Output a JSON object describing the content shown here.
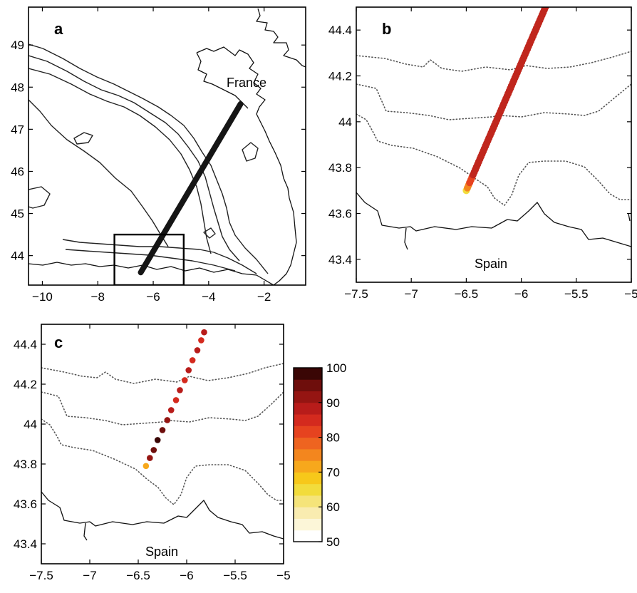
{
  "panels": [
    {
      "label": "a",
      "place_labels": [
        "France"
      ],
      "x_ticks": [
        "−10",
        "−8",
        "−6",
        "−4",
        "−2"
      ],
      "y_ticks": [
        "49",
        "48",
        "47",
        "46",
        "45",
        "44"
      ],
      "xlim": [
        -10.5,
        -0.5
      ],
      "ylim": [
        43.3,
        49.9
      ],
      "track": {
        "start": [
          -6.45,
          43.6
        ],
        "end": [
          -2.85,
          47.6
        ]
      },
      "inset_box": {
        "lon": [
          -7.4,
          -4.9
        ],
        "lat": [
          43.3,
          44.5
        ]
      }
    },
    {
      "label": "b",
      "place_labels": [
        "Spain"
      ],
      "x_ticks": [
        "−7.5",
        "−7",
        "−6.5",
        "−6",
        "−5.5",
        "−5"
      ],
      "y_ticks": [
        "44.4",
        "44.2",
        "44",
        "43.8",
        "43.6",
        "43.4"
      ],
      "xlim": [
        -7.5,
        -5
      ],
      "ylim": [
        43.3,
        44.5
      ],
      "track": {
        "start": [
          -6.5,
          43.7
        ],
        "end": [
          -5.78,
          44.5
        ]
      }
    },
    {
      "label": "c",
      "place_labels": [
        "Spain"
      ],
      "x_ticks": [
        "−7.5",
        "−7",
        "−6.5",
        "−6",
        "−5.5",
        "−5"
      ],
      "y_ticks": [
        "44.4",
        "44.2",
        "44",
        "43.8",
        "43.6",
        "43.4"
      ],
      "xlim": [
        -7.5,
        -5
      ],
      "ylim": [
        43.3,
        44.5
      ],
      "track_points": [
        {
          "lon": -6.42,
          "lat": 43.79,
          "v": 72
        },
        {
          "lon": -6.38,
          "lat": 43.83,
          "v": 90
        },
        {
          "lon": -6.34,
          "lat": 43.87,
          "v": 94
        },
        {
          "lon": -6.3,
          "lat": 43.92,
          "v": 100
        },
        {
          "lon": -6.25,
          "lat": 43.97,
          "v": 96
        },
        {
          "lon": -6.2,
          "lat": 44.02,
          "v": 90
        },
        {
          "lon": -6.16,
          "lat": 44.07,
          "v": 88
        },
        {
          "lon": -6.11,
          "lat": 44.12,
          "v": 86
        },
        {
          "lon": -6.07,
          "lat": 44.17,
          "v": 88
        },
        {
          "lon": -6.02,
          "lat": 44.22,
          "v": 86
        },
        {
          "lon": -5.98,
          "lat": 44.27,
          "v": 88
        },
        {
          "lon": -5.94,
          "lat": 44.32,
          "v": 86
        },
        {
          "lon": -5.89,
          "lat": 44.37,
          "v": 88
        },
        {
          "lon": -5.85,
          "lat": 44.42,
          "v": 86
        },
        {
          "lon": -5.82,
          "lat": 44.46,
          "v": 88
        }
      ]
    }
  ],
  "colorbar": {
    "ticks": [
      "100",
      "90",
      "80",
      "70",
      "60",
      "50"
    ],
    "range": [
      50,
      100
    ],
    "colors": [
      "#ffffff",
      "#fcf6d8",
      "#f9ecb0",
      "#f5e47a",
      "#f2dc3c",
      "#f7c81a",
      "#f7a81c",
      "#f3861e",
      "#ee6420",
      "#e6431f",
      "#d42a1e",
      "#b81c1a",
      "#951512",
      "#6e0e0c",
      "#3a0605"
    ]
  }
}
